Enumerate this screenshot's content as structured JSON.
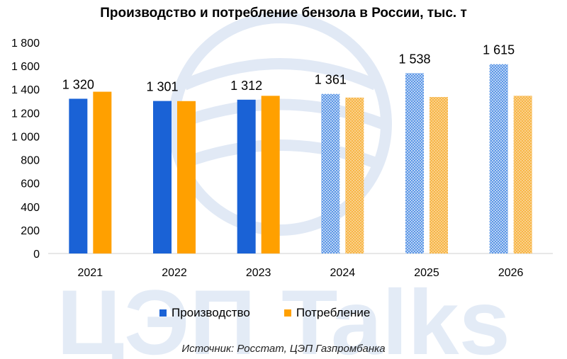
{
  "colors": {
    "production": "#1a62d6",
    "consumption": "#ffa000",
    "production_forecast": "#3d82e0",
    "consumption_forecast": "#f5b84a",
    "watermark": "#b7cceb"
  },
  "watermark": {
    "text": "ЦЭП Talks"
  },
  "chart_data": {
    "type": "bar",
    "title": "Производство и потребление бензола в России, тыс. т",
    "categories": [
      "2021",
      "2022",
      "2023",
      "2024",
      "2025",
      "2026"
    ],
    "forecast_from_index": 3,
    "ylim": [
      0,
      1800
    ],
    "yticks": [
      0,
      200,
      400,
      600,
      800,
      1000,
      1200,
      1400,
      1600,
      1800
    ],
    "ytick_labels": [
      "0",
      "200",
      "400",
      "600",
      "800",
      "1 000",
      "1 200",
      "1 400",
      "1 600",
      "1 800"
    ],
    "series": [
      {
        "name": "Производство",
        "values": [
          1320,
          1301,
          1312,
          1361,
          1538,
          1615
        ],
        "labels": [
          "1 320",
          "1 301",
          "1 312",
          "1 361",
          "1 538",
          "1 615"
        ]
      },
      {
        "name": "Потребление",
        "values": [
          1380,
          1300,
          1345,
          1330,
          1335,
          1345
        ]
      }
    ],
    "legend_position": "bottom",
    "grid": false,
    "source": "Источник: Росстат, ЦЭП Газпромбанка"
  }
}
